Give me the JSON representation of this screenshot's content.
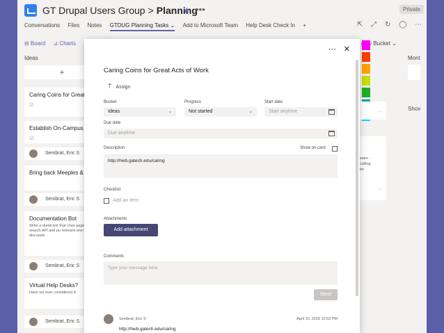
{
  "header": {
    "team": "GT Drupal Users Group",
    "separator": ">",
    "channel": "Planning",
    "privacy": "Private"
  },
  "tabs": [
    {
      "label": "Conversations"
    },
    {
      "label": "Files"
    },
    {
      "label": "Notes"
    },
    {
      "label": "GTDUG Planning Tasks ⌄"
    },
    {
      "label": "Add to Microsoft Team"
    },
    {
      "label": "Help Desk Check In"
    },
    {
      "label": "+"
    }
  ],
  "board_toolbar": {
    "board": "⊟ Board",
    "charts": "⊿ Charts",
    "group_by": "p by Bucket ⌄"
  },
  "columns": {
    "ideas": "Ideas",
    "month": "Mont",
    "show": "Shov"
  },
  "cards": [
    {
      "title": "Caring Coins for Great A",
      "desc": "",
      "icon": "☑"
    },
    {
      "title": "Establish On-Campus fo",
      "desc": "",
      "icon": "☑"
    },
    {
      "title": "Bring back Meeples & K",
      "desc": "",
      "icon": ""
    },
    {
      "title": "Documentation Bot",
      "desc": "Write a dumb bot that choo pages via search API and pu relevant one to a discussio",
      "icon": ""
    },
    {
      "title": "Virtual Help Desks?",
      "desc": "Have we ever considered d",
      "icon": ""
    }
  ],
  "assignee": "Sembrat, Eric S",
  "right_card_text": "ware · calling be",
  "right_card_dots": "...",
  "swatch_colors": [
    "#ff00ff",
    "#ff3d00",
    "#ffa000",
    "#c5e000",
    "#20b020",
    "#00a2a2",
    "#00d8ff"
  ],
  "task": {
    "title": "Caring Coins for Great Acts of Work",
    "assign_label": "Assign",
    "bucket_label": "Bucket",
    "bucket_value": "Ideas",
    "progress_label": "Progress",
    "progress_value": "Not started",
    "start_label": "Start date",
    "start_placeholder": "Start anytime",
    "due_label": "Due date",
    "due_placeholder": "Due anytime",
    "desc_label": "Description",
    "show_on_card": "Show on card",
    "description": "http://hwb.gatech.edu/caring",
    "checklist_label": "Checklist",
    "checklist_placeholder": "Add an item",
    "attachments_label": "Attachments",
    "add_attachment": "Add attachment",
    "comments_label": "Comments",
    "comment_placeholder": "Type your message here",
    "send": "Send",
    "comment_author": "Sembrat, Eric S",
    "comment_date": "April 10, 2018 12:53 PM",
    "comment_text": "http://hwb.gatech.edu/caring"
  }
}
